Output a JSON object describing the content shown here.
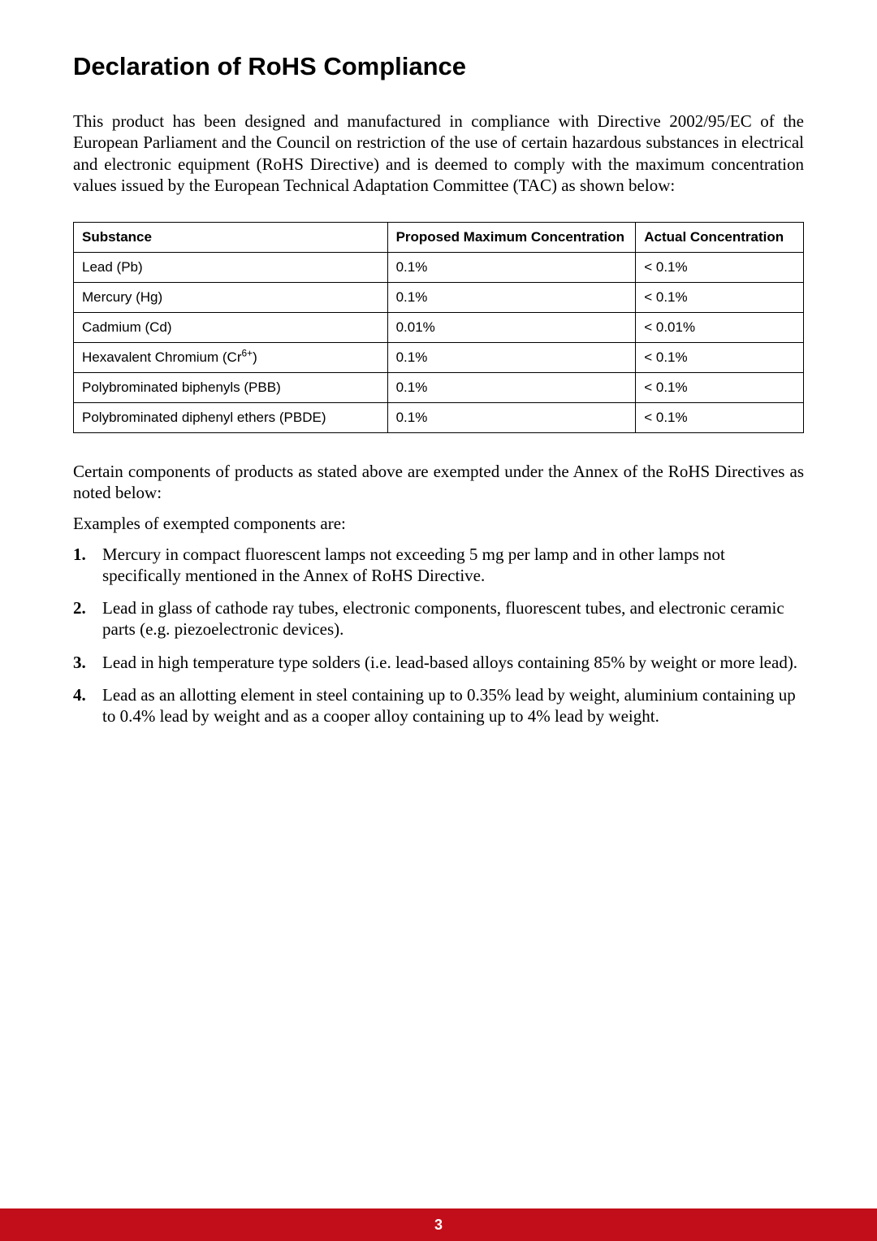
{
  "title": "Declaration of RoHS Compliance",
  "intro": "This product has been designed and manufactured in compliance with Directive 2002/95/EC of the European Parliament and the Council on restriction of the use of certain hazardous substances in electrical and electronic equipment (RoHS Directive) and is deemed to comply with the maximum concentration values issued by the European Technical Adaptation Committee (TAC) as shown below:",
  "table": {
    "headers": {
      "substance": "Substance",
      "proposed": "Proposed Maximum Concentration",
      "actual": "Actual Concentration"
    },
    "rows": [
      {
        "substance": "Lead (Pb)",
        "proposed": "0.1%",
        "actual": "< 0.1%"
      },
      {
        "substance": "Mercury (Hg)",
        "proposed": "0.1%",
        "actual": "< 0.1%"
      },
      {
        "substance": "Cadmium (Cd)",
        "proposed": "0.01%",
        "actual": "< 0.01%"
      },
      {
        "substance_prefix": "Hexavalent Chromium (Cr",
        "substance_sup": "6+",
        "substance_suffix": ")",
        "proposed": "0.1%",
        "actual": "< 0.1%"
      },
      {
        "substance": "Polybrominated biphenyls (PBB)",
        "proposed": "0.1%",
        "actual": "< 0.1%"
      },
      {
        "substance": "Polybrominated diphenyl ethers (PBDE)",
        "proposed": "0.1%",
        "actual": "< 0.1%"
      }
    ]
  },
  "exempt_intro": "Certain components of products as stated above are exempted under the Annex of the RoHS Directives as noted below:",
  "examples_label": "Examples of exempted components are:",
  "exemptions": [
    {
      "num": "1.",
      "text": "Mercury in compact fluorescent lamps not exceeding 5 mg per lamp and in other lamps not specifically mentioned in the Annex of RoHS Directive."
    },
    {
      "num": "2.",
      "text": "Lead in glass of cathode ray tubes, electronic components, fluorescent tubes, and electronic ceramic parts (e.g. piezoelectronic devices)."
    },
    {
      "num": "3.",
      "text": "Lead in high temperature type solders (i.e. lead-based alloys containing 85% by weight or more lead)."
    },
    {
      "num": "4.",
      "text": "Lead as an allotting element in steel containing up to 0.35% lead by weight, aluminium containing up to 0.4% lead by weight and as a cooper alloy containing up to 4% lead by weight."
    }
  ],
  "page_number": "3",
  "colors": {
    "footer_bg": "#c20e1a",
    "footer_text": "#ffffff",
    "text": "#000000",
    "border": "#000000",
    "background": "#ffffff"
  }
}
